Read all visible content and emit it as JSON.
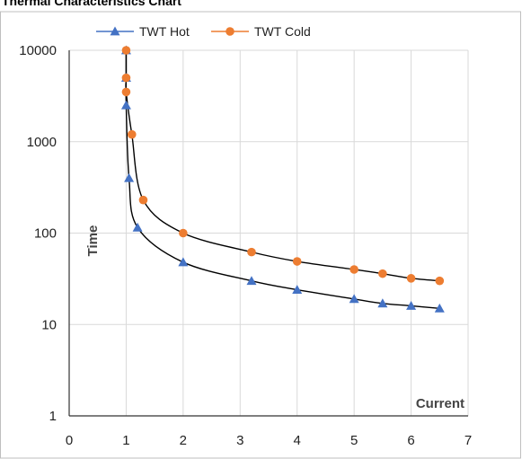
{
  "chart_data": {
    "type": "scatter",
    "title": "Thermal Characteristics Chart",
    "xlabel": "Current",
    "ylabel": "Time",
    "xlim": [
      0,
      7
    ],
    "ylim": [
      1,
      10000
    ],
    "yscale": "log",
    "xticks": [
      "0",
      "1",
      "2",
      "3",
      "4",
      "5",
      "6",
      "7"
    ],
    "yticks": [
      "1",
      "10",
      "100",
      "1000",
      "10000"
    ],
    "grid": true,
    "legend_position": "top",
    "series": [
      {
        "name": "TWT Hot",
        "color": "#4472c4",
        "marker": "triangle",
        "x": [
          1.0,
          1.0,
          1.0,
          1.05,
          1.2,
          2.0,
          3.2,
          4.0,
          5.0,
          5.5,
          6.0,
          6.5
        ],
        "y": [
          10000,
          5000,
          2500,
          400,
          115,
          48,
          30,
          24,
          19,
          17,
          16,
          15
        ]
      },
      {
        "name": "TWT Cold",
        "color": "#ed7d31",
        "marker": "circle",
        "x": [
          1.0,
          1.0,
          1.0,
          1.1,
          1.3,
          2.0,
          3.2,
          4.0,
          5.0,
          5.5,
          6.0,
          6.5
        ],
        "y": [
          10000,
          5000,
          3500,
          1200,
          230,
          100,
          62,
          49,
          40,
          36,
          32,
          30
        ]
      }
    ]
  }
}
